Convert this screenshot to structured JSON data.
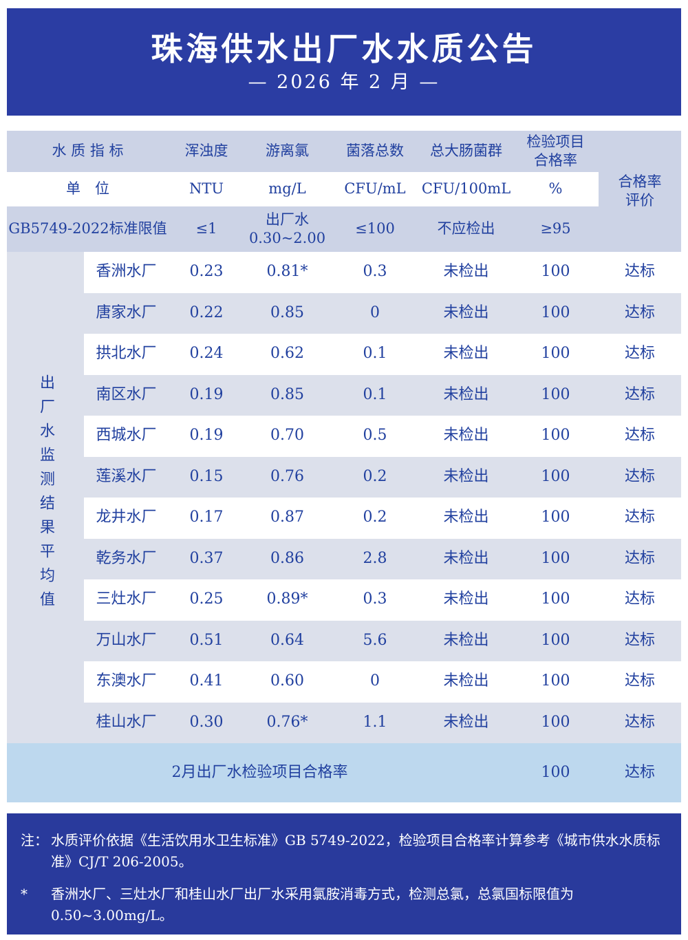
{
  "banner": {
    "title": "珠海供水出厂水水质公告",
    "subtitle": "— 2026 年 2 月 —"
  },
  "table": {
    "header": {
      "indicator_label": "水 质 指 标",
      "columns": [
        "浑浊度",
        "游离氯",
        "菌落总数",
        "总大肠菌群",
        "检验项目\n合格率"
      ],
      "evaluation_label": "合格率\n评价"
    },
    "unit_row": {
      "label": "单　位",
      "units": [
        "NTU",
        "mg/L",
        "CFU/mL",
        "CFU/100mL",
        "%"
      ]
    },
    "standard_row": {
      "label": "GB5749-2022标准限值",
      "values": [
        "≤1",
        "出厂水\n0.30~2.00",
        "≤100",
        "不应检出",
        "≥95"
      ]
    },
    "group_label": "出厂水监测结果平均值",
    "rows": [
      {
        "plant": "香洲水厂",
        "turbidity": "0.23",
        "chlorine": "0.81*",
        "colony": "0.3",
        "coliform": "未检出",
        "rate": "100",
        "eval": "达标"
      },
      {
        "plant": "唐家水厂",
        "turbidity": "0.22",
        "chlorine": "0.85",
        "colony": "0",
        "coliform": "未检出",
        "rate": "100",
        "eval": "达标"
      },
      {
        "plant": "拱北水厂",
        "turbidity": "0.24",
        "chlorine": "0.62",
        "colony": "0.1",
        "coliform": "未检出",
        "rate": "100",
        "eval": "达标"
      },
      {
        "plant": "南区水厂",
        "turbidity": "0.19",
        "chlorine": "0.85",
        "colony": "0.1",
        "coliform": "未检出",
        "rate": "100",
        "eval": "达标"
      },
      {
        "plant": "西城水厂",
        "turbidity": "0.19",
        "chlorine": "0.70",
        "colony": "0.5",
        "coliform": "未检出",
        "rate": "100",
        "eval": "达标"
      },
      {
        "plant": "莲溪水厂",
        "turbidity": "0.15",
        "chlorine": "0.76",
        "colony": "0.2",
        "coliform": "未检出",
        "rate": "100",
        "eval": "达标"
      },
      {
        "plant": "龙井水厂",
        "turbidity": "0.17",
        "chlorine": "0.87",
        "colony": "0.2",
        "coliform": "未检出",
        "rate": "100",
        "eval": "达标"
      },
      {
        "plant": "乾务水厂",
        "turbidity": "0.37",
        "chlorine": "0.86",
        "colony": "2.8",
        "coliform": "未检出",
        "rate": "100",
        "eval": "达标"
      },
      {
        "plant": "三灶水厂",
        "turbidity": "0.25",
        "chlorine": "0.89*",
        "colony": "0.3",
        "coliform": "未检出",
        "rate": "100",
        "eval": "达标"
      },
      {
        "plant": "万山水厂",
        "turbidity": "0.51",
        "chlorine": "0.64",
        "colony": "5.6",
        "coliform": "未检出",
        "rate": "100",
        "eval": "达标"
      },
      {
        "plant": "东澳水厂",
        "turbidity": "0.41",
        "chlorine": "0.60",
        "colony": "0",
        "coliform": "未检出",
        "rate": "100",
        "eval": "达标"
      },
      {
        "plant": "桂山水厂",
        "turbidity": "0.30",
        "chlorine": "0.76*",
        "colony": "1.1",
        "coliform": "未检出",
        "rate": "100",
        "eval": "达标"
      }
    ],
    "summary": {
      "label": "2月出厂水检验项目合格率",
      "rate": "100",
      "eval": "达标"
    }
  },
  "notes": [
    {
      "prefix": "注：",
      "text": "水质评价依据《生活饮用水卫生标准》GB 5749-2022，检验项目合格率计算参考《城市供水水质标准》CJ/T 206-2005。"
    },
    {
      "prefix": "*",
      "text": "香洲水厂、三灶水厂和桂山水厂出厂水采用氯胺消毒方式，检测总氯，总氯国标限值为0.50~3.00mg/L。"
    }
  ],
  "colors": {
    "banner_blue": "#2b3da3",
    "footer_blue": "#293a9c",
    "header_lavender": "#ccd3e6",
    "row_alt": "#dce0eb",
    "summary_blue": "#bdd8ee",
    "text_blue": "#21409f"
  }
}
